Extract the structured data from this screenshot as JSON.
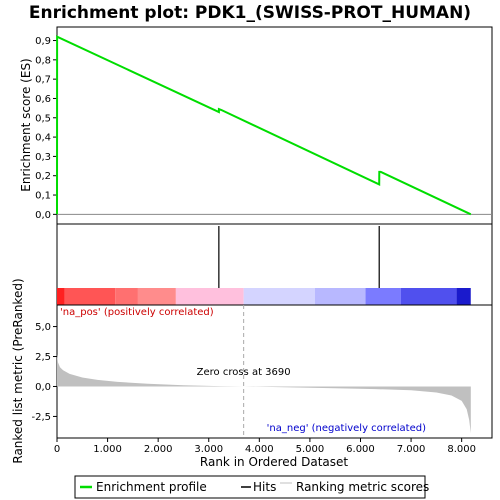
{
  "chart_data": {
    "type": "line",
    "title": "Enrichment plot: PDK1_(SWISS-PROT_HUMAN)",
    "es_panel": {
      "ylabel": "Enrichment score (ES)",
      "ylim": [
        -0.05,
        0.97
      ],
      "yticks": [
        "0,0",
        "0,1",
        "0,2",
        "0,3",
        "0,4",
        "0,5",
        "0,6",
        "0,7",
        "0,8",
        "0,9"
      ],
      "ytick_values": [
        0.0,
        0.1,
        0.2,
        0.3,
        0.4,
        0.5,
        0.6,
        0.7,
        0.8,
        0.9
      ],
      "series": [
        {
          "name": "Enrichment profile",
          "color": "#00dd00",
          "x": [
            0,
            1,
            3200,
            3201,
            3250,
            6370,
            6371,
            6400,
            8180
          ],
          "y": [
            0.0,
            0.92,
            0.53,
            0.545,
            0.54,
            0.155,
            0.22,
            0.22,
            0.0
          ]
        }
      ]
    },
    "hits_panel": {
      "hits": [
        3200,
        6370
      ],
      "hit_color": "#000000"
    },
    "ranking_panel": {
      "ylabel": "Ranked list metric (PreRanked)",
      "ylim": [
        -4.3,
        6.8
      ],
      "yticks": [
        "-2,5",
        "0,0",
        "2,5",
        "5,0"
      ],
      "ytick_values": [
        -2.5,
        0.0,
        2.5,
        5.0
      ],
      "fill_color": "#c0c0c0",
      "metric_curve": {
        "x": [
          0,
          20,
          60,
          120,
          250,
          500,
          800,
          1200,
          1800,
          2500,
          3200,
          3690,
          4500,
          5500,
          6300,
          7000,
          7500,
          7800,
          8000,
          8100,
          8150,
          8180
        ],
        "y": [
          2.7,
          2.0,
          1.6,
          1.35,
          1.05,
          0.75,
          0.55,
          0.38,
          0.22,
          0.1,
          0.03,
          0.0,
          -0.06,
          -0.15,
          -0.22,
          -0.32,
          -0.5,
          -0.75,
          -1.2,
          -1.9,
          -2.8,
          -3.9
        ]
      },
      "zero_cross_label": "Zero cross at 3690",
      "zero_cross_x": 3690,
      "pos_label": "'na_pos' (positively correlated)",
      "neg_label": "'na_neg' (negatively correlated)"
    },
    "color_bar": {
      "segments": [
        {
          "x0": 0,
          "x1": 150,
          "color": "#ff2020"
        },
        {
          "x0": 150,
          "x1": 1150,
          "color": "#ff5555"
        },
        {
          "x0": 1150,
          "x1": 1600,
          "color": "#ff7070"
        },
        {
          "x0": 1600,
          "x1": 2350,
          "color": "#ff8c8c"
        },
        {
          "x0": 2350,
          "x1": 3690,
          "color": "#ffc0dd"
        },
        {
          "x0": 3690,
          "x1": 5100,
          "color": "#d4d4ff"
        },
        {
          "x0": 5100,
          "x1": 6100,
          "color": "#b8b8ff"
        },
        {
          "x0": 6100,
          "x1": 6800,
          "color": "#7b7bff"
        },
        {
          "x0": 6800,
          "x1": 7900,
          "color": "#5050ee"
        },
        {
          "x0": 7900,
          "x1": 8180,
          "color": "#1a1acc"
        }
      ]
    },
    "x_axis": {
      "xlabel": "Rank in Ordered Dataset",
      "xlim": [
        0,
        8600
      ],
      "xticks": [
        "0",
        "1.000",
        "2.000",
        "3.000",
        "4.000",
        "5.000",
        "6.000",
        "7.000",
        "8.000"
      ],
      "xtick_values": [
        0,
        1000,
        2000,
        3000,
        4000,
        5000,
        6000,
        7000,
        8000
      ]
    },
    "legend": {
      "placement": "bottom",
      "entries": [
        {
          "label": "Enrichment profile",
          "color": "#00dd00"
        },
        {
          "label": "Hits",
          "color": "#000000"
        },
        {
          "label": "Ranking metric scores",
          "color": "#c0c0c0"
        }
      ]
    }
  }
}
